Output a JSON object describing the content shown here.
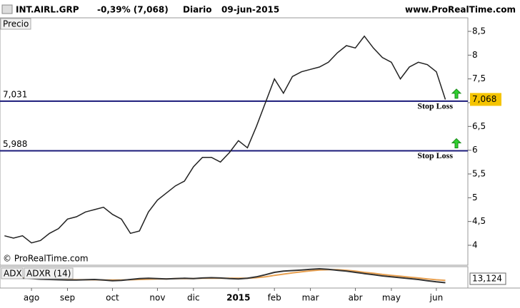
{
  "chart_data": {
    "type": "line",
    "header": "INT.AIRL.GRP",
    "change": "-0,39% (7,068)",
    "period": "Diario",
    "date": "09-jun-2015",
    "source": "www.ProRealTime.com",
    "panel_label": "Precio",
    "copyright": "© ProRealTime.com",
    "categories": [
      null,
      null,
      null,
      "ago",
      null,
      null,
      null,
      "sep",
      null,
      null,
      null,
      null,
      "oct",
      null,
      null,
      null,
      null,
      "nov",
      null,
      null,
      null,
      "dic",
      null,
      null,
      null,
      null,
      "2015",
      null,
      null,
      null,
      "feb",
      null,
      null,
      null,
      "mar",
      null,
      null,
      null,
      null,
      "abr",
      null,
      null,
      null,
      "may",
      null,
      null,
      null,
      null,
      "jun",
      null,
      null,
      null
    ],
    "series": [
      {
        "name": "INT.AIRL.GRP",
        "color": "#222222",
        "values": [
          4.2,
          4.15,
          4.2,
          4.05,
          4.1,
          4.25,
          4.35,
          4.55,
          4.6,
          4.7,
          4.75,
          4.8,
          4.65,
          4.55,
          4.25,
          4.3,
          4.7,
          4.95,
          5.1,
          5.25,
          5.35,
          5.65,
          5.85,
          5.85,
          5.75,
          5.95,
          6.2,
          6.05,
          6.5,
          7.0,
          7.5,
          7.2,
          7.55,
          7.65,
          7.7,
          7.75,
          7.85,
          8.05,
          8.2,
          8.15,
          8.4,
          8.15,
          7.95,
          7.85,
          7.5,
          7.75,
          7.85,
          7.8,
          7.65,
          7.068,
          null,
          null
        ]
      }
    ],
    "ylim": [
      3.61,
      8.74
    ],
    "yticks": [
      4,
      {
        "value": 4.5,
        "label": "4,5"
      },
      5,
      {
        "value": 5.5,
        "label": "5,5"
      },
      6,
      {
        "value": 6.5,
        "label": "6,5"
      },
      7,
      {
        "value": 7.5,
        "label": "7,5"
      },
      8,
      {
        "value": 8.5,
        "label": "8,5"
      }
    ],
    "last_price": {
      "value": 7.068,
      "label": "7,068"
    },
    "levels": [
      {
        "value": 7.031,
        "label": "7,031",
        "note": "Stop Loss",
        "color": "#1a1a7a"
      },
      {
        "value": 5.988,
        "label": "5,988",
        "note": "Stop Loss",
        "color": "#1a1a7a"
      }
    ],
    "indicator": {
      "labels": [
        "ADX",
        "ADXR (14)"
      ],
      "ylim": [
        0,
        60
      ],
      "series": [
        {
          "name": "ADX",
          "color": "#333333",
          "values": [
            32,
            30,
            28,
            27,
            25,
            24,
            23,
            22,
            22,
            23,
            24,
            22,
            20,
            21,
            24,
            27,
            28,
            27,
            26,
            27,
            28,
            27,
            29,
            30,
            29,
            27,
            26,
            28,
            33,
            40,
            48,
            52,
            54,
            56,
            58,
            60,
            58,
            55,
            52,
            48,
            44,
            40,
            36,
            33,
            30,
            27,
            24,
            20,
            16,
            13.124,
            null,
            null
          ]
        },
        {
          "name": "ADXR (14)",
          "color": "#e8a050",
          "values": [
            30,
            30,
            29,
            28,
            27,
            26,
            25,
            24,
            23,
            23,
            23,
            22,
            22,
            22,
            23,
            24,
            25,
            26,
            26,
            27,
            27,
            27,
            28,
            28,
            28,
            28,
            28,
            28,
            30,
            33,
            38,
            42,
            46,
            50,
            53,
            56,
            57,
            57,
            55,
            52,
            48,
            45,
            41,
            38,
            35,
            32,
            29,
            26,
            23,
            21,
            null,
            null
          ]
        }
      ],
      "current": {
        "value": 13.124,
        "label": "13,124"
      }
    }
  }
}
